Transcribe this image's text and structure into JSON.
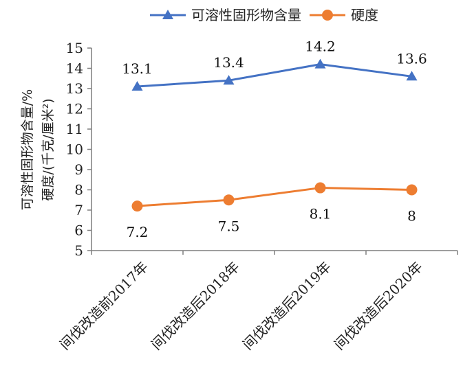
{
  "chart_data": {
    "type": "line",
    "categories": [
      "间伐改造前2017年",
      "间伐改造后2018年",
      "间伐改造后2019年",
      "间伐改造后2020年"
    ],
    "series": [
      {
        "name": "可溶性固形物含量",
        "values": [
          13.1,
          13.4,
          14.2,
          13.6
        ],
        "labels": [
          "13.1",
          "13.4",
          "14.2",
          "13.6"
        ],
        "color": "#4472C4",
        "marker": "triangle"
      },
      {
        "name": "硬度",
        "values": [
          7.2,
          7.5,
          8.1,
          8.0
        ],
        "labels": [
          "7.2",
          "7.5",
          "8.1",
          "8"
        ],
        "color": "#ED7D31",
        "marker": "circle"
      }
    ],
    "ylabel_lines": [
      "可溶性固形物含量/%",
      "硬度/(千克/厘米²)"
    ],
    "ylim": [
      5,
      15
    ],
    "yticks": [
      "5",
      "6",
      "7",
      "8",
      "9",
      "10",
      "11",
      "12",
      "13",
      "14",
      "15"
    ],
    "legend_position": "top",
    "grid": false
  }
}
